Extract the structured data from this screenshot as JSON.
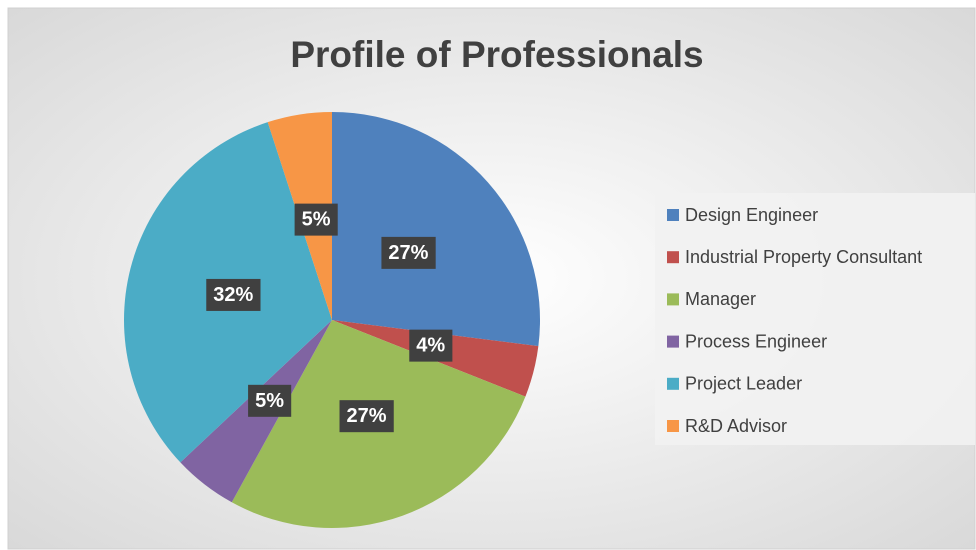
{
  "chart_data": {
    "type": "pie",
    "title": "Profile of Professionals",
    "categories": [
      "Design Engineer",
      "Industrial Property Consultant",
      "Manager",
      "Process Engineer",
      "Project Leader",
      "R&D Advisor"
    ],
    "values": [
      27,
      4,
      27,
      5,
      32,
      5
    ],
    "value_labels": [
      "27%",
      "4%",
      "27%",
      "5%",
      "32%",
      "5%"
    ],
    "colors": [
      "#4f81bd",
      "#c0504d",
      "#9bbb59",
      "#8064a2",
      "#4bacc6",
      "#f79646"
    ],
    "legend": "right"
  }
}
